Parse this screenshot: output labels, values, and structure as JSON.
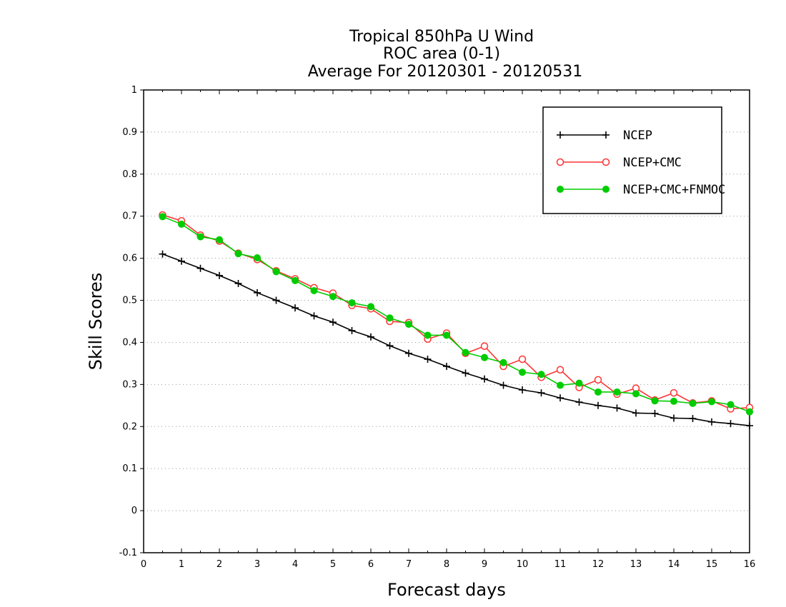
{
  "chart_data": {
    "type": "line",
    "title": [
      "Tropical 850hPa U Wind",
      "ROC area (0-1)",
      "Average For 20120301 - 20120531"
    ],
    "xlabel": "Forecast days",
    "ylabel": "Skill Scores",
    "xlim": [
      0,
      16
    ],
    "ylim": [
      -0.1,
      1
    ],
    "xticks": [
      "0",
      "1",
      "2",
      "3",
      "4",
      "5",
      "6",
      "7",
      "8",
      "9",
      "10",
      "11",
      "12",
      "13",
      "14",
      "15",
      "16"
    ],
    "yticks": [
      "-0.1",
      "0",
      "0.1",
      "0.2",
      "0.3",
      "0.4",
      "0.5",
      "0.6",
      "0.7",
      "0.8",
      "0.9",
      "1"
    ],
    "grid": "horizontal dotted",
    "legend_position": "top-right",
    "x": [
      0.5,
      1,
      1.5,
      2,
      2.5,
      3,
      3.5,
      4,
      4.5,
      5,
      5.5,
      6,
      6.5,
      7,
      7.5,
      8,
      8.5,
      9,
      9.5,
      10,
      10.5,
      11,
      11.5,
      12,
      12.5,
      13,
      13.5,
      14,
      14.5,
      15,
      15.5,
      16
    ],
    "series": [
      {
        "name": "NCEP",
        "color": "#000000",
        "marker": "plus",
        "values": [
          0.61,
          0.593,
          0.576,
          0.559,
          0.54,
          0.518,
          0.5,
          0.482,
          0.463,
          0.448,
          0.428,
          0.413,
          0.392,
          0.374,
          0.36,
          0.343,
          0.327,
          0.313,
          0.298,
          0.287,
          0.28,
          0.268,
          0.258,
          0.25,
          0.244,
          0.232,
          0.231,
          0.22,
          0.219,
          0.211,
          0.207,
          0.202
        ]
      },
      {
        "name": "NCEP+CMC",
        "color": "#ff3333",
        "marker": "open-circle",
        "values": [
          0.703,
          0.689,
          0.655,
          0.641,
          0.612,
          0.597,
          0.57,
          0.551,
          0.53,
          0.517,
          0.488,
          0.48,
          0.45,
          0.447,
          0.408,
          0.422,
          0.374,
          0.391,
          0.343,
          0.36,
          0.317,
          0.335,
          0.293,
          0.311,
          0.277,
          0.291,
          0.263,
          0.28,
          0.256,
          0.261,
          0.242,
          0.245
        ]
      },
      {
        "name": "NCEP+CMC+FNMOC",
        "color": "#00cc00",
        "marker": "filled-circle",
        "values": [
          0.699,
          0.681,
          0.651,
          0.644,
          0.611,
          0.601,
          0.568,
          0.547,
          0.523,
          0.509,
          0.494,
          0.485,
          0.458,
          0.443,
          0.417,
          0.417,
          0.376,
          0.364,
          0.352,
          0.329,
          0.324,
          0.298,
          0.303,
          0.282,
          0.282,
          0.278,
          0.261,
          0.26,
          0.255,
          0.259,
          0.252,
          0.235
        ]
      }
    ]
  }
}
